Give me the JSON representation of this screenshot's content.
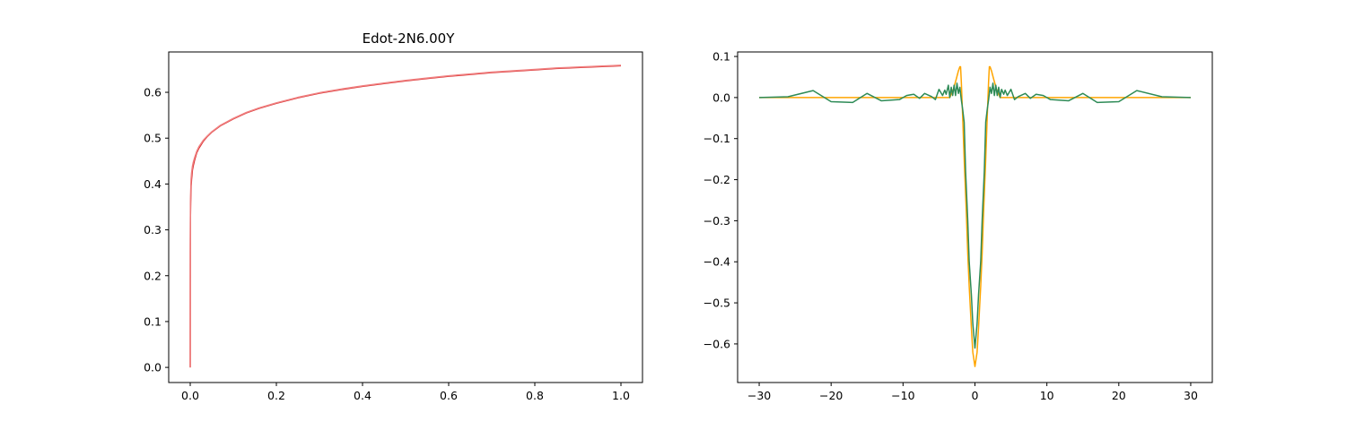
{
  "figure": {
    "background": "#ffffff"
  },
  "chart_data": [
    {
      "type": "line",
      "title": "Edot-2N6.00Y",
      "xlabel": "",
      "ylabel": "",
      "xlim": [
        -0.05,
        1.05
      ],
      "ylim": [
        -0.033,
        0.688
      ],
      "xticks": [
        0.0,
        0.2,
        0.4,
        0.6,
        0.8,
        1.0
      ],
      "xtick_labels": [
        "0.0",
        "0.2",
        "0.4",
        "0.6",
        "0.8",
        "1.0"
      ],
      "yticks": [
        0.0,
        0.1,
        0.2,
        0.3,
        0.4,
        0.5,
        0.6
      ],
      "ytick_labels": [
        "0.0",
        "0.1",
        "0.2",
        "0.3",
        "0.4",
        "0.5",
        "0.6"
      ],
      "grid": false,
      "series": [
        {
          "color": "#d62728",
          "x": [
            0.0,
            0.0002,
            0.0005,
            0.001,
            0.002,
            0.003,
            0.005,
            0.007,
            0.01,
            0.015,
            0.02,
            0.03,
            0.04,
            0.05,
            0.07,
            0.1,
            0.13,
            0.16,
            0.2,
            0.25,
            0.3,
            0.35,
            0.4,
            0.45,
            0.5,
            0.55,
            0.6,
            0.65,
            0.7,
            0.75,
            0.8,
            0.85,
            0.9,
            0.95,
            1.0
          ],
          "y": [
            0.0,
            0.25,
            0.33,
            0.36,
            0.395,
            0.41,
            0.43,
            0.44,
            0.452,
            0.468,
            0.478,
            0.493,
            0.504,
            0.513,
            0.527,
            0.542,
            0.555,
            0.565,
            0.576,
            0.588,
            0.598,
            0.606,
            0.613,
            0.619,
            0.625,
            0.63,
            0.635,
            0.639,
            0.643,
            0.646,
            0.649,
            0.652,
            0.654,
            0.656,
            0.658
          ]
        },
        {
          "color": "#f08080",
          "x": [
            0.0,
            0.0002,
            0.0005,
            0.001,
            0.002,
            0.003,
            0.005,
            0.007,
            0.01,
            0.015,
            0.02,
            0.03,
            0.04,
            0.05,
            0.07,
            0.1,
            0.13,
            0.16,
            0.2,
            0.25,
            0.3,
            0.35,
            0.4,
            0.45,
            0.5,
            0.55,
            0.6,
            0.65,
            0.7,
            0.75,
            0.8,
            0.85,
            0.9,
            0.95,
            1.0
          ],
          "y": [
            0.0,
            0.27,
            0.35,
            0.38,
            0.41,
            0.423,
            0.438,
            0.447,
            0.457,
            0.471,
            0.481,
            0.495,
            0.505,
            0.514,
            0.528,
            0.543,
            0.556,
            0.566,
            0.577,
            0.589,
            0.599,
            0.607,
            0.614,
            0.62,
            0.626,
            0.631,
            0.636,
            0.64,
            0.644,
            0.647,
            0.65,
            0.653,
            0.655,
            0.657,
            0.659
          ]
        }
      ]
    },
    {
      "type": "line",
      "title": "",
      "xlabel": "",
      "ylabel": "",
      "xlim": [
        -33,
        33
      ],
      "ylim": [
        -0.694,
        0.111
      ],
      "xticks": [
        -30,
        -20,
        -10,
        0,
        10,
        20,
        30
      ],
      "xtick_labels": [
        "−30",
        "−20",
        "−10",
        "0",
        "10",
        "20",
        "30"
      ],
      "yticks": [
        0.1,
        0.0,
        -0.1,
        -0.2,
        -0.3,
        -0.4,
        -0.5,
        -0.6
      ],
      "ytick_labels": [
        "0.1",
        "0.0",
        "−0.1",
        "−0.2",
        "−0.3",
        "−0.4",
        "−0.5",
        "−0.6"
      ],
      "grid": false,
      "series": [
        {
          "color": "#ffa500",
          "x": [
            -30,
            -3.5,
            -3.0,
            -2.6,
            -2.3,
            -2.1,
            -2.0,
            -1.9,
            -1.7,
            -1.5,
            -1.2,
            -1.0,
            -0.8,
            -0.5,
            -0.3,
            0.0,
            0.3,
            0.5,
            0.8,
            1.0,
            1.2,
            1.5,
            1.7,
            1.9,
            2.0,
            2.1,
            2.3,
            2.6,
            3.0,
            3.5,
            30
          ],
          "y": [
            0.0,
            0.0,
            0.02,
            0.045,
            0.065,
            0.075,
            0.075,
            0.04,
            -0.05,
            -0.15,
            -0.28,
            -0.38,
            -0.46,
            -0.56,
            -0.62,
            -0.655,
            -0.62,
            -0.56,
            -0.46,
            -0.38,
            -0.28,
            -0.15,
            -0.05,
            0.04,
            0.075,
            0.075,
            0.065,
            0.045,
            0.02,
            0.0,
            0.0
          ]
        },
        {
          "color": "#2e8b57",
          "x": [
            -30,
            -26,
            -22.5,
            -20,
            -17,
            -15,
            -13,
            -10.5,
            -9.5,
            -8.5,
            -7.7,
            -7,
            -6,
            -5.5,
            -5,
            -4.5,
            -4.2,
            -4,
            -3.7,
            -3.5,
            -3.3,
            -3.1,
            -2.9,
            -2.7,
            -2.5,
            -2.3,
            -2.1,
            -1.9,
            -1.7,
            -1.5,
            -1.3,
            -1.0,
            -0.8,
            -0.5,
            -0.3,
            0.0,
            0.3,
            0.5,
            0.8,
            1.0,
            1.3,
            1.5,
            1.7,
            1.9,
            2.1,
            2.3,
            2.5,
            2.7,
            2.9,
            3.1,
            3.3,
            3.5,
            3.7,
            4,
            4.2,
            4.5,
            5,
            5.5,
            6,
            7,
            7.7,
            8.5,
            9.5,
            10.5,
            13,
            15,
            17,
            20,
            22.5,
            26,
            30
          ],
          "y": [
            0.0,
            0.002,
            0.017,
            -0.01,
            -0.012,
            0.01,
            -0.008,
            -0.005,
            0.005,
            0.008,
            -0.002,
            0.01,
            0.002,
            -0.005,
            0.02,
            0.005,
            0.018,
            0.008,
            0.03,
            0.0,
            0.025,
            0.005,
            0.03,
            0.005,
            0.035,
            0.01,
            0.025,
            -0.005,
            -0.03,
            -0.06,
            -0.18,
            -0.3,
            -0.4,
            -0.48,
            -0.55,
            -0.61,
            -0.55,
            -0.48,
            -0.4,
            -0.3,
            -0.18,
            -0.06,
            -0.03,
            -0.005,
            0.025,
            0.01,
            0.035,
            0.005,
            0.03,
            0.005,
            0.025,
            0.0,
            0.02,
            0.008,
            0.018,
            0.005,
            0.02,
            -0.005,
            0.002,
            0.01,
            -0.002,
            0.008,
            0.005,
            -0.005,
            -0.008,
            0.01,
            -0.012,
            -0.01,
            0.017,
            0.002,
            0.0
          ]
        }
      ]
    }
  ]
}
